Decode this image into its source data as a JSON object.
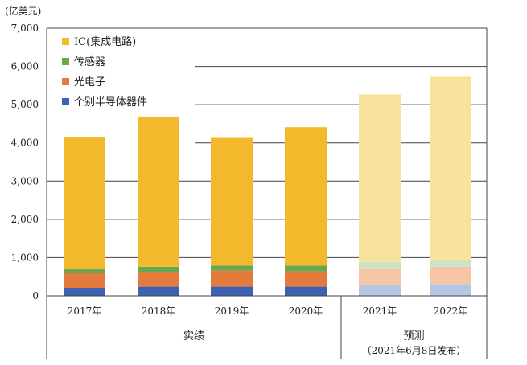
{
  "chart_data": {
    "type": "bar",
    "stacked": true,
    "unit": "(亿美元)",
    "ylim": [
      0,
      7000
    ],
    "yticks": [
      "0",
      "1,000",
      "2,000",
      "3,000",
      "4,000",
      "5,000",
      "6,000",
      "7,000"
    ],
    "categories": [
      "2017年",
      "2018年",
      "2019年",
      "2020年",
      "2021年",
      "2022年"
    ],
    "groups": [
      {
        "label": "实绩",
        "categories": [
          "2017年",
          "2018年",
          "2019年",
          "2020年"
        ]
      },
      {
        "label": "预测",
        "note": "（2021年6月8日发布）",
        "categories": [
          "2021年",
          "2022年"
        ]
      }
    ],
    "forecast_start_index": 4,
    "series": [
      {
        "name": "个别半导体器件",
        "color": "#3d62b3",
        "forecast_color": "#b5c6e4",
        "values": [
          210,
          240,
          240,
          240,
          290,
          310
        ]
      },
      {
        "name": "光电子",
        "color": "#e47b3c",
        "forecast_color": "#f6c5a6",
        "values": [
          380,
          390,
          420,
          400,
          430,
          450
        ]
      },
      {
        "name": "传感器",
        "color": "#6aa84f",
        "forecast_color": "#cde3c3",
        "values": [
          120,
          130,
          130,
          150,
          170,
          190
        ]
      },
      {
        "name": "IC(集成电路)",
        "color": "#f2b92c",
        "forecast_color": "#f9e39c",
        "values": [
          3430,
          3930,
          3340,
          3620,
          4380,
          4780
        ]
      }
    ],
    "legend": {
      "position": "top-left",
      "order": [
        "IC(集成电路)",
        "传感器",
        "光电子",
        "个别半导体器件"
      ]
    },
    "grid": true
  }
}
